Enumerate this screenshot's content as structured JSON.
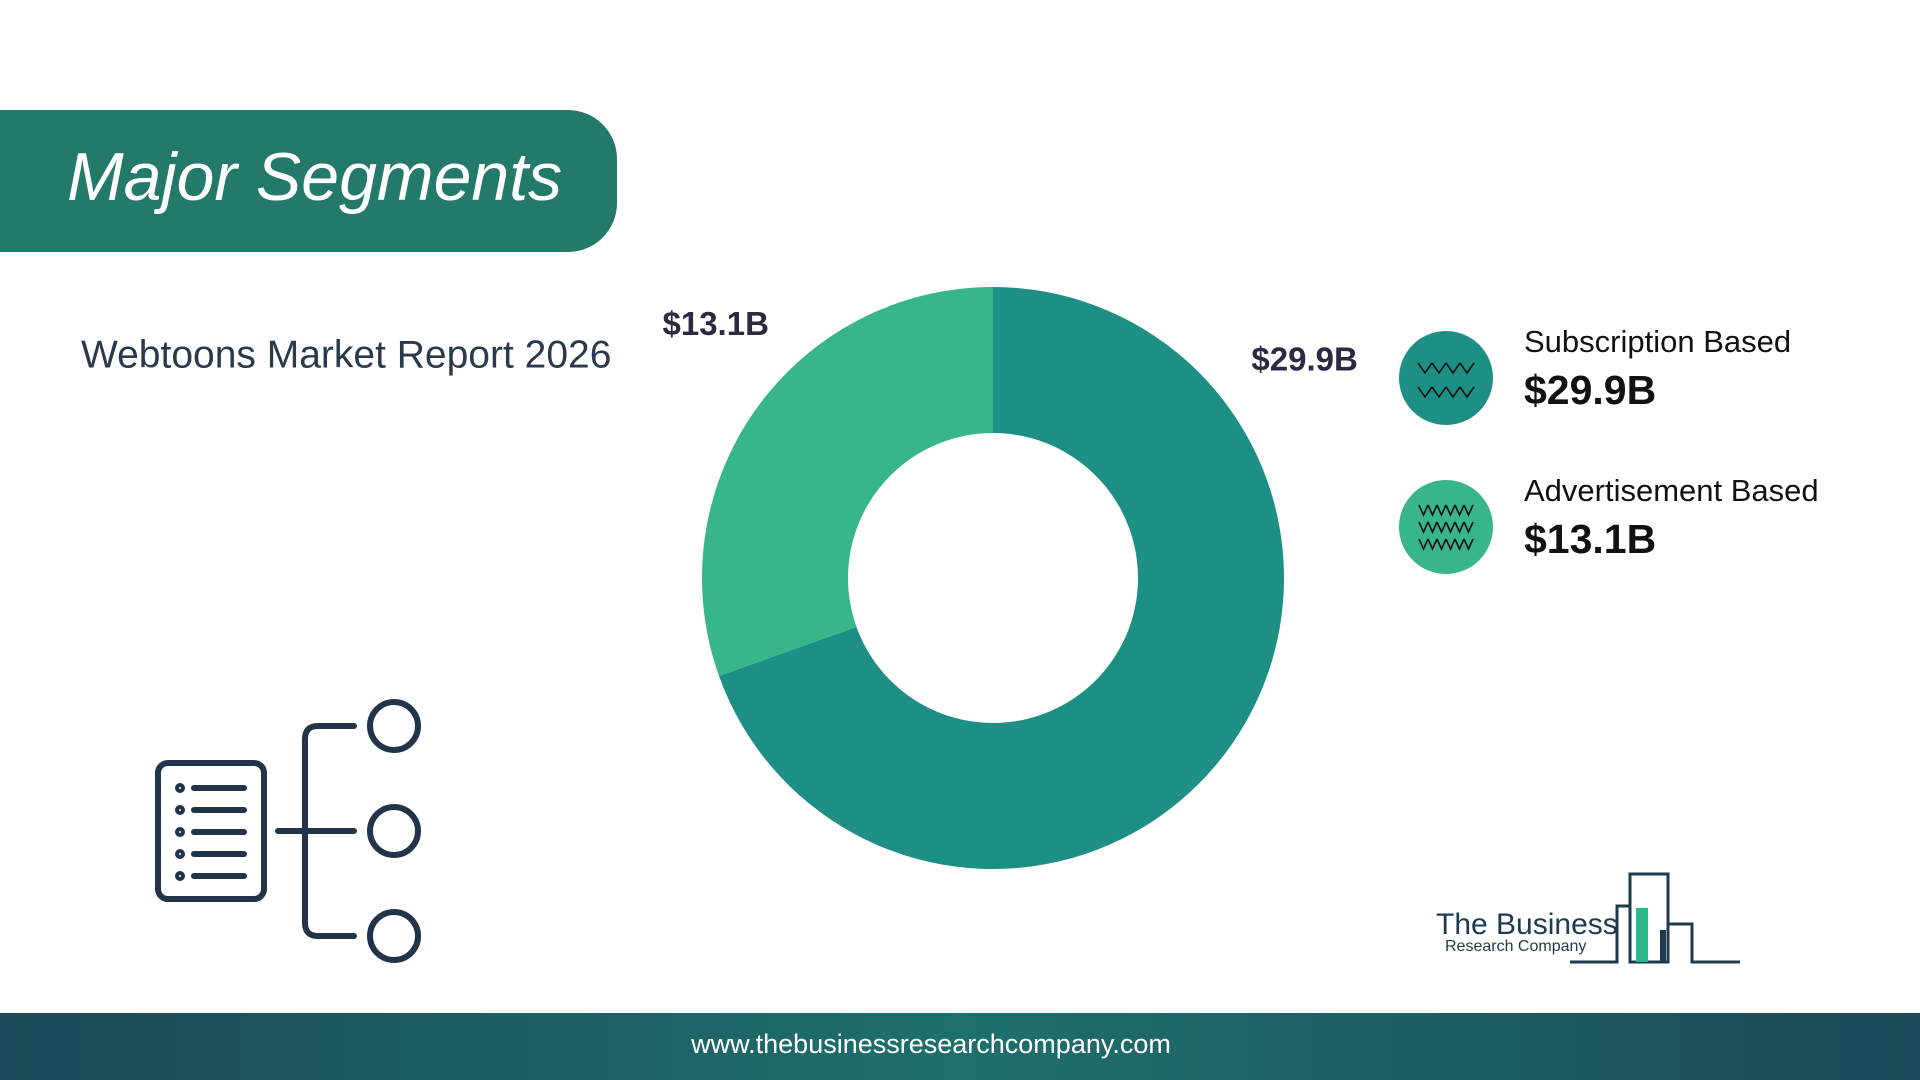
{
  "chart_data": {
    "type": "donut",
    "title": "Major Segments",
    "subtitle": "Webtoons Market Report 2026",
    "categories": [
      "Subscription Based",
      "Advertisement Based"
    ],
    "values": [
      29.9,
      13.1
    ],
    "value_labels": [
      "$29.9B",
      "$13.1B"
    ],
    "colors": [
      "#1e8f85",
      "#36b68a"
    ]
  },
  "logo": {
    "line1": "The Business",
    "line2": "Research Company"
  },
  "footer": {
    "url": "www.thebusinessresearchcompany.com"
  }
}
